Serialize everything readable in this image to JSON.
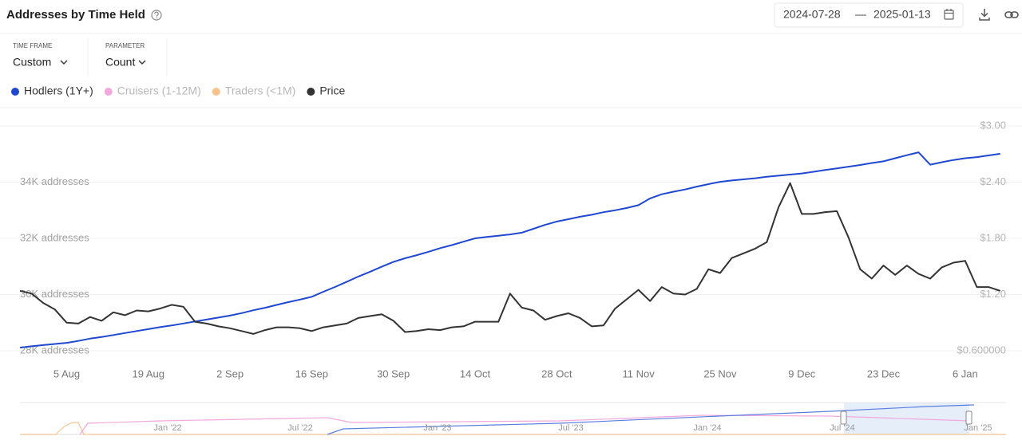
{
  "header": {
    "title": "Addresses by Time Held",
    "date_start": "2024-07-28",
    "date_separator": "—",
    "date_end": "2025-01-13"
  },
  "controls": [
    {
      "label": "TIME FRAME",
      "value": "Custom"
    },
    {
      "label": "PARAMETER",
      "value": "Count"
    }
  ],
  "chart_data": {
    "type": "line",
    "x": [
      "2024-07-28",
      "2024-07-30",
      "2024-08-01",
      "2024-08-03",
      "2024-08-05",
      "2024-08-07",
      "2024-08-09",
      "2024-08-11",
      "2024-08-13",
      "2024-08-15",
      "2024-08-17",
      "2024-08-19",
      "2024-08-21",
      "2024-08-23",
      "2024-08-25",
      "2024-08-27",
      "2024-08-29",
      "2024-08-31",
      "2024-09-02",
      "2024-09-04",
      "2024-09-06",
      "2024-09-08",
      "2024-09-10",
      "2024-09-12",
      "2024-09-14",
      "2024-09-16",
      "2024-09-18",
      "2024-09-20",
      "2024-09-22",
      "2024-09-24",
      "2024-09-26",
      "2024-09-28",
      "2024-09-30",
      "2024-10-02",
      "2024-10-04",
      "2024-10-06",
      "2024-10-08",
      "2024-10-10",
      "2024-10-12",
      "2024-10-14",
      "2024-10-16",
      "2024-10-18",
      "2024-10-20",
      "2024-10-22",
      "2024-10-24",
      "2024-10-26",
      "2024-10-28",
      "2024-10-30",
      "2024-11-01",
      "2024-11-03",
      "2024-11-05",
      "2024-11-07",
      "2024-11-09",
      "2024-11-11",
      "2024-11-13",
      "2024-11-15",
      "2024-11-17",
      "2024-11-19",
      "2024-11-21",
      "2024-11-23",
      "2024-11-25",
      "2024-11-27",
      "2024-11-29",
      "2024-12-01",
      "2024-12-03",
      "2024-12-05",
      "2024-12-07",
      "2024-12-09",
      "2024-12-11",
      "2024-12-13",
      "2024-12-15",
      "2024-12-17",
      "2024-12-19",
      "2024-12-21",
      "2024-12-23",
      "2024-12-25",
      "2024-12-27",
      "2024-12-29",
      "2024-12-31",
      "2025-01-02",
      "2025-01-04",
      "2025-01-06",
      "2025-01-08",
      "2025-01-10",
      "2025-01-12"
    ],
    "series": [
      {
        "name": "Hodlers (1Y+)",
        "color": "#1f48d0",
        "visible": true,
        "values": [
          28110,
          28160,
          28200,
          28240,
          28280,
          28350,
          28430,
          28490,
          28560,
          28630,
          28700,
          28770,
          28840,
          28900,
          28970,
          29040,
          29110,
          29180,
          29250,
          29340,
          29440,
          29530,
          29630,
          29730,
          29820,
          29920,
          30100,
          30270,
          30450,
          30640,
          30810,
          30990,
          31160,
          31290,
          31400,
          31520,
          31650,
          31760,
          31880,
          32000,
          32050,
          32090,
          32140,
          32200,
          32340,
          32480,
          32600,
          32680,
          32770,
          32840,
          32930,
          33000,
          33080,
          33180,
          33420,
          33570,
          33660,
          33740,
          33840,
          33930,
          34010,
          34060,
          34100,
          34140,
          34190,
          34230,
          34270,
          34310,
          34370,
          34430,
          34490,
          34550,
          34610,
          34680,
          34740,
          34850,
          34960,
          35060,
          34620,
          34710,
          34790,
          34850,
          34890,
          34950,
          35010
        ]
      },
      {
        "name": "Cruisers (1-12M)",
        "color": "#f2a8dc",
        "visible": false
      },
      {
        "name": "Traders (<1M)",
        "color": "#f7c28e",
        "visible": false
      },
      {
        "name": "Price",
        "color": "#333333",
        "visible": true,
        "axis": "y2",
        "values": [
          1.24,
          1.21,
          1.11,
          1.04,
          0.9,
          0.89,
          0.96,
          0.92,
          1.01,
          0.98,
          1.03,
          1.02,
          1.05,
          1.09,
          1.07,
          0.91,
          0.89,
          0.86,
          0.84,
          0.81,
          0.78,
          0.82,
          0.85,
          0.85,
          0.84,
          0.81,
          0.85,
          0.87,
          0.89,
          0.95,
          0.97,
          0.99,
          0.92,
          0.8,
          0.81,
          0.83,
          0.82,
          0.85,
          0.86,
          0.91,
          0.91,
          0.91,
          1.21,
          1.06,
          1.03,
          0.93,
          0.97,
          1.0,
          0.95,
          0.86,
          0.87,
          1.05,
          1.15,
          1.25,
          1.13,
          1.28,
          1.21,
          1.2,
          1.26,
          1.47,
          1.43,
          1.59,
          1.64,
          1.69,
          1.76,
          2.13,
          2.39,
          2.06,
          2.06,
          2.08,
          2.09,
          1.81,
          1.47,
          1.37,
          1.51,
          1.41,
          1.51,
          1.42,
          1.37,
          1.49,
          1.54,
          1.56,
          1.28,
          1.28,
          1.24
        ]
      }
    ],
    "xlim": [
      "2024-07-28",
      "2025-01-13"
    ],
    "xticks": [
      {
        "value": "2024-08-05",
        "label": "5 Aug"
      },
      {
        "value": "2024-08-19",
        "label": "19 Aug"
      },
      {
        "value": "2024-09-02",
        "label": "2 Sep"
      },
      {
        "value": "2024-09-16",
        "label": "16 Sep"
      },
      {
        "value": "2024-09-30",
        "label": "30 Sep"
      },
      {
        "value": "2024-10-14",
        "label": "14 Oct"
      },
      {
        "value": "2024-10-28",
        "label": "28 Oct"
      },
      {
        "value": "2024-11-11",
        "label": "11 Nov"
      },
      {
        "value": "2024-11-25",
        "label": "25 Nov"
      },
      {
        "value": "2024-12-09",
        "label": "9 Dec"
      },
      {
        "value": "2024-12-23",
        "label": "23 Dec"
      },
      {
        "value": "2025-01-06",
        "label": "6 Jan"
      }
    ],
    "ylim": [
      28000,
      36000
    ],
    "yticks": [
      {
        "value": 28000,
        "label": "28K addresses"
      },
      {
        "value": 30000,
        "label": "30K addresses"
      },
      {
        "value": 32000,
        "label": "32K addresses"
      },
      {
        "value": 34000,
        "label": "34K addresses"
      }
    ],
    "y2lim": [
      0.6,
      3.0
    ],
    "y2ticks": [
      {
        "value": 0.6,
        "label": "$0.600000"
      },
      {
        "value": 1.2,
        "label": "$1.20"
      },
      {
        "value": 1.8,
        "label": "$1.80"
      },
      {
        "value": 2.4,
        "label": "$2.40"
      },
      {
        "value": 3.0,
        "label": "$3.00"
      }
    ],
    "grid": true
  },
  "navigator": {
    "labels": [
      "Jan '22",
      "Jul '22",
      "Jan '23",
      "Jul '23",
      "Jan '24",
      "Jul '24",
      "Jan '25"
    ]
  }
}
